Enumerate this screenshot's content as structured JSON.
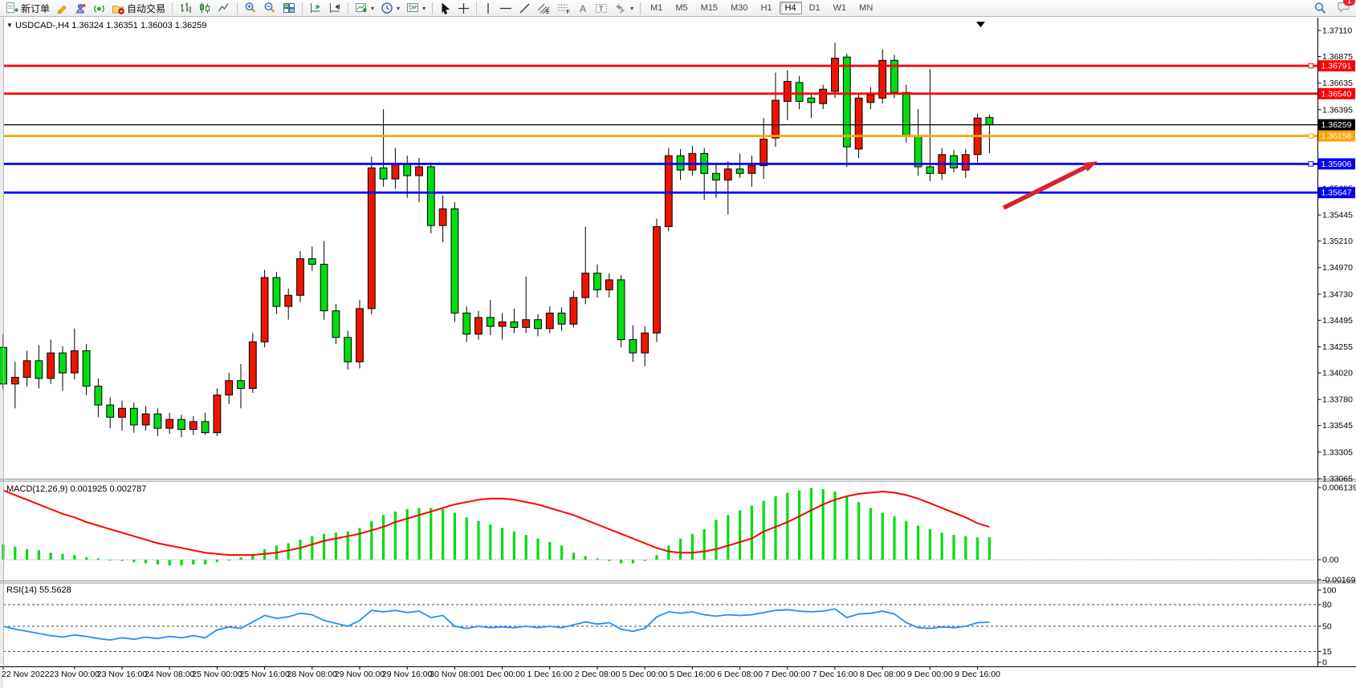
{
  "toolbar": {
    "new_order_label": "新订单",
    "auto_trading_label": "自动交易",
    "timeframes": [
      "M1",
      "M5",
      "M15",
      "M30",
      "H1",
      "H4",
      "D1",
      "W1",
      "MN"
    ],
    "active_timeframe": "H4",
    "notification_count": "1"
  },
  "header": {
    "symbol": "USDCAD-,H4",
    "open": "1.36324",
    "high": "1.36351",
    "low": "1.36003",
    "close": "1.36259"
  },
  "chart_data": {
    "type": "candlestick",
    "symbol": "USDCAD",
    "timeframe": "H4",
    "current_bar": {
      "open": 1.36324,
      "high": 1.36351,
      "low": 1.36003,
      "close": 1.36259
    },
    "colors": {
      "up_candle": "#ee1500",
      "down_candle": "#00dd11",
      "candle_outline": "#000000",
      "macd_hist": "#00dd11",
      "macd_signal": "#ff0000",
      "rsi_line": "#1e90ff",
      "line_red": "#ff0000",
      "line_blue": "#0000ff",
      "line_orange": "#ffa500",
      "current_price": "#000000",
      "arrow": "#d8232e"
    },
    "y_axis": {
      "top_price": 1.3711,
      "bottom_price": 1.33065,
      "tick_labels": [
        "1.37110",
        "1.36875",
        "1.36635",
        "1.36395",
        "1.35685",
        "1.35445",
        "1.35210",
        "1.34970",
        "1.34730",
        "1.34495",
        "1.34255",
        "1.34020",
        "1.33780",
        "1.33545",
        "1.33305",
        "1.33065"
      ],
      "tick_prices": [
        1.3711,
        1.36875,
        1.36635,
        1.36395,
        1.35685,
        1.35445,
        1.3521,
        1.3497,
        1.3473,
        1.34495,
        1.34255,
        1.3402,
        1.3378,
        1.33545,
        1.33305,
        1.33065
      ]
    },
    "x_axis_labels": [
      {
        "text": "22 Nov 2022",
        "bar": 0
      },
      {
        "text": "23 Nov 00:00",
        "bar": 6
      },
      {
        "text": "23 Nov 16:00",
        "bar": 10
      },
      {
        "text": "24 Nov 08:00",
        "bar": 14
      },
      {
        "text": "25 Nov 00:00",
        "bar": 18
      },
      {
        "text": "25 Nov 16:00",
        "bar": 22
      },
      {
        "text": "28 Nov 08:00",
        "bar": 26
      },
      {
        "text": "29 Nov 00:00",
        "bar": 30
      },
      {
        "text": "29 Nov 16:00",
        "bar": 34
      },
      {
        "text": "30 Nov 08:00",
        "bar": 38
      },
      {
        "text": "1 Dec 00:00",
        "bar": 42
      },
      {
        "text": "1 Dec 16:00",
        "bar": 46
      },
      {
        "text": "2 Dec 08:00",
        "bar": 50
      },
      {
        "text": "5 Dec 00:00",
        "bar": 54
      },
      {
        "text": "5 Dec 16:00",
        "bar": 58
      },
      {
        "text": "6 Dec 08:00",
        "bar": 62
      },
      {
        "text": "7 Dec 00:00",
        "bar": 66
      },
      {
        "text": "7 Dec 16:00",
        "bar": 70
      },
      {
        "text": "8 Dec 08:00",
        "bar": 74
      },
      {
        "text": "9 Dec 00:00",
        "bar": 78
      },
      {
        "text": "9 Dec 16:00",
        "bar": 82
      }
    ],
    "candles": [
      [
        1.3425,
        1.3437,
        1.3387,
        1.3392
      ],
      [
        1.3392,
        1.3412,
        1.337,
        1.3398
      ],
      [
        1.3398,
        1.3422,
        1.339,
        1.3413
      ],
      [
        1.3413,
        1.3427,
        1.3388,
        1.3397
      ],
      [
        1.3397,
        1.3432,
        1.3392,
        1.342
      ],
      [
        1.342,
        1.3426,
        1.3386,
        1.3402
      ],
      [
        1.3402,
        1.3442,
        1.3396,
        1.3422
      ],
      [
        1.3422,
        1.3428,
        1.3382,
        1.339
      ],
      [
        1.339,
        1.3397,
        1.3362,
        1.3373
      ],
      [
        1.3373,
        1.338,
        1.3352,
        1.3362
      ],
      [
        1.3362,
        1.3377,
        1.335,
        1.337
      ],
      [
        1.337,
        1.3375,
        1.3348,
        1.3355
      ],
      [
        1.3355,
        1.3372,
        1.335,
        1.3365
      ],
      [
        1.3365,
        1.337,
        1.3345,
        1.3352
      ],
      [
        1.3352,
        1.3366,
        1.3347,
        1.336
      ],
      [
        1.336,
        1.3364,
        1.3344,
        1.3351
      ],
      [
        1.3351,
        1.3363,
        1.3346,
        1.3358
      ],
      [
        1.3358,
        1.3366,
        1.3346,
        1.3348
      ],
      [
        1.3348,
        1.3388,
        1.3345,
        1.3382
      ],
      [
        1.3382,
        1.3402,
        1.3374,
        1.3395
      ],
      [
        1.3395,
        1.341,
        1.337,
        1.3388
      ],
      [
        1.3388,
        1.3438,
        1.3384,
        1.343
      ],
      [
        1.343,
        1.3495,
        1.3425,
        1.3488
      ],
      [
        1.3488,
        1.3493,
        1.3455,
        1.3462
      ],
      [
        1.3462,
        1.3478,
        1.345,
        1.3472
      ],
      [
        1.3472,
        1.3512,
        1.3466,
        1.3505
      ],
      [
        1.3505,
        1.3516,
        1.3494,
        1.35
      ],
      [
        1.35,
        1.3521,
        1.345,
        1.3458
      ],
      [
        1.3458,
        1.3464,
        1.3428,
        1.3434
      ],
      [
        1.3434,
        1.344,
        1.3405,
        1.3412
      ],
      [
        1.3412,
        1.3468,
        1.3406,
        1.346
      ],
      [
        1.346,
        1.3597,
        1.3455,
        1.3587
      ],
      [
        1.3587,
        1.364,
        1.357,
        1.3577
      ],
      [
        1.3577,
        1.3605,
        1.3568,
        1.359
      ],
      [
        1.359,
        1.3598,
        1.356,
        1.358
      ],
      [
        1.358,
        1.3596,
        1.3556,
        1.3588
      ],
      [
        1.3588,
        1.3592,
        1.3528,
        1.3535
      ],
      [
        1.3535,
        1.3562,
        1.352,
        1.355
      ],
      [
        1.355,
        1.3556,
        1.3448,
        1.3456
      ],
      [
        1.3456,
        1.3462,
        1.343,
        1.3437
      ],
      [
        1.3437,
        1.3458,
        1.3432,
        1.3452
      ],
      [
        1.3452,
        1.3468,
        1.3436,
        1.3444
      ],
      [
        1.3444,
        1.3456,
        1.3432,
        1.3448
      ],
      [
        1.3448,
        1.346,
        1.3438,
        1.3443
      ],
      [
        1.3443,
        1.3489,
        1.3438,
        1.345
      ],
      [
        1.345,
        1.3455,
        1.3435,
        1.3442
      ],
      [
        1.3442,
        1.3462,
        1.3438,
        1.3456
      ],
      [
        1.3456,
        1.3461,
        1.344,
        1.3446
      ],
      [
        1.3446,
        1.3476,
        1.3443,
        1.347
      ],
      [
        1.347,
        1.3534,
        1.3464,
        1.3492
      ],
      [
        1.3492,
        1.35,
        1.347,
        1.3477
      ],
      [
        1.3477,
        1.3492,
        1.347,
        1.3486
      ],
      [
        1.3486,
        1.349,
        1.3425,
        1.3432
      ],
      [
        1.3432,
        1.3445,
        1.3412,
        1.342
      ],
      [
        1.342,
        1.3444,
        1.3408,
        1.3438
      ],
      [
        1.3438,
        1.3541,
        1.343,
        1.3534
      ],
      [
        1.3534,
        1.3605,
        1.353,
        1.3598
      ],
      [
        1.3598,
        1.3604,
        1.3576,
        1.3585
      ],
      [
        1.3585,
        1.3607,
        1.358,
        1.36
      ],
      [
        1.36,
        1.3605,
        1.3558,
        1.3582
      ],
      [
        1.3582,
        1.359,
        1.356,
        1.3576
      ],
      [
        1.3576,
        1.3593,
        1.3545,
        1.3586
      ],
      [
        1.3586,
        1.36,
        1.3578,
        1.3582
      ],
      [
        1.3582,
        1.3598,
        1.357,
        1.3589
      ],
      [
        1.3589,
        1.3632,
        1.3577,
        1.3613
      ],
      [
        1.3614,
        1.3673,
        1.3606,
        1.3648
      ],
      [
        1.3647,
        1.3675,
        1.363,
        1.3665
      ],
      [
        1.3664,
        1.367,
        1.364,
        1.3647
      ],
      [
        1.365,
        1.3655,
        1.3632,
        1.3646
      ],
      [
        1.3645,
        1.3662,
        1.364,
        1.3658
      ],
      [
        1.3656,
        1.37,
        1.365,
        1.3686
      ],
      [
        1.3687,
        1.369,
        1.3588,
        1.3606
      ],
      [
        1.3604,
        1.3655,
        1.3596,
        1.365
      ],
      [
        1.3646,
        1.366,
        1.364,
        1.3653
      ],
      [
        1.365,
        1.3694,
        1.3645,
        1.3684
      ],
      [
        1.3684,
        1.3689,
        1.365,
        1.3655
      ],
      [
        1.3655,
        1.3662,
        1.361,
        1.3616
      ],
      [
        1.3616,
        1.364,
        1.358,
        1.3588
      ],
      [
        1.3588,
        1.3676,
        1.3575,
        1.3582
      ],
      [
        1.3582,
        1.3605,
        1.3576,
        1.3599
      ],
      [
        1.3598,
        1.3603,
        1.3583,
        1.3587
      ],
      [
        1.3585,
        1.3604,
        1.3578,
        1.3599
      ],
      [
        1.3599,
        1.3636,
        1.3592,
        1.3632
      ],
      [
        1.36324,
        1.36351,
        1.36003,
        1.36259
      ]
    ],
    "h_lines": [
      {
        "price": 1.36791,
        "label": "1.36791",
        "color": "#ff0000",
        "handle": true
      },
      {
        "price": 1.3654,
        "label": "1.36540",
        "color": "#ff0000",
        "handle": false
      },
      {
        "price": 1.36158,
        "label": "1.36158",
        "color": "#ffa500",
        "handle": true
      },
      {
        "price": 1.35906,
        "label": "1.35906",
        "color": "#0000ff",
        "handle": true
      },
      {
        "price": 1.35647,
        "label": "1.35647",
        "color": "#0000ff",
        "handle": false
      }
    ],
    "current_price_line": {
      "price": 1.36259,
      "label": "1.36259",
      "color": "#000000"
    },
    "arrow": {
      "from": {
        "bar": 84.2,
        "price": 1.3551
      },
      "to": {
        "bar": 92.1,
        "price": 1.3593
      }
    },
    "macd": {
      "label": "MACD(12,26,9)",
      "value": "0.001925",
      "signal_value": "0.002787",
      "axis_max_label": "0.006139",
      "axis_zero_label": "0.00",
      "axis_min_label": "-0.001692",
      "axis_max": 0.006139,
      "axis_min": -0.001692,
      "histogram": [
        0.0013,
        0.0011,
        0.0009,
        0.0008,
        0.0006,
        0.0005,
        0.0004,
        0.0002,
        0.0001,
        0.0,
        -0.0001,
        -0.0002,
        -0.0003,
        -0.0004,
        -0.0005,
        -0.0005,
        -0.0004,
        -0.0004,
        -0.0002,
        0.0,
        0.0002,
        0.0005,
        0.0009,
        0.0012,
        0.0014,
        0.0017,
        0.002,
        0.0022,
        0.0023,
        0.0024,
        0.0027,
        0.0033,
        0.0038,
        0.0041,
        0.0043,
        0.0044,
        0.0044,
        0.0043,
        0.004,
        0.0036,
        0.0033,
        0.003,
        0.0027,
        0.0024,
        0.0021,
        0.0018,
        0.0015,
        0.0012,
        0.0006,
        0.0003,
        0.0001,
        -0.0001,
        -0.0003,
        -0.0003,
        -0.0001,
        0.0004,
        0.0012,
        0.0018,
        0.0022,
        0.0026,
        0.0034,
        0.0038,
        0.0042,
        0.0046,
        0.005,
        0.0054,
        0.0057,
        0.0059,
        0.0061,
        0.006,
        0.0058,
        0.0054,
        0.0049,
        0.0044,
        0.004,
        0.0037,
        0.0033,
        0.0029,
        0.0026,
        0.0023,
        0.0021,
        0.002,
        0.0019,
        0.001925
      ],
      "signal": [
        0.0059,
        0.0055,
        0.0051,
        0.0047,
        0.0043,
        0.0039,
        0.0036,
        0.0032,
        0.0029,
        0.0026,
        0.0023,
        0.002,
        0.0017,
        0.0014,
        0.0012,
        0.001,
        0.0008,
        0.0006,
        0.0005,
        0.0004,
        0.0004,
        0.0004,
        0.0005,
        0.0006,
        0.0008,
        0.001,
        0.0013,
        0.0016,
        0.0018,
        0.002,
        0.0022,
        0.0025,
        0.0028,
        0.0032,
        0.0035,
        0.0038,
        0.0041,
        0.0044,
        0.0047,
        0.0049,
        0.0051,
        0.0052,
        0.0052,
        0.0051,
        0.0049,
        0.0047,
        0.0044,
        0.0041,
        0.0038,
        0.0034,
        0.003,
        0.0026,
        0.0022,
        0.0018,
        0.0014,
        0.001,
        0.0007,
        0.0006,
        0.0006,
        0.0007,
        0.0009,
        0.0012,
        0.0015,
        0.0018,
        0.0024,
        0.0028,
        0.0032,
        0.0037,
        0.0042,
        0.0047,
        0.0051,
        0.0054,
        0.0056,
        0.0057,
        0.0058,
        0.0057,
        0.0055,
        0.0052,
        0.0048,
        0.0044,
        0.004,
        0.0036,
        0.0031,
        0.00279
      ]
    },
    "rsi": {
      "label": "RSI(14)",
      "value": "55.5628",
      "level_labels": [
        "100",
        "80",
        "50",
        "15",
        "0"
      ],
      "levels": [
        100,
        80,
        50,
        15,
        0
      ],
      "dashed_levels": [
        80,
        50,
        15
      ],
      "series": [
        50,
        46,
        43,
        40,
        37,
        35,
        38,
        36,
        33,
        31,
        34,
        32,
        35,
        33,
        36,
        34,
        37,
        34,
        45,
        49,
        47,
        56,
        65,
        61,
        63,
        68,
        66,
        58,
        54,
        50,
        58,
        72,
        70,
        72,
        69,
        71,
        62,
        65,
        50,
        47,
        50,
        48,
        49,
        48,
        50,
        48,
        50,
        48,
        52,
        56,
        53,
        55,
        46,
        43,
        47,
        63,
        70,
        68,
        70,
        66,
        64,
        66,
        65,
        66,
        69,
        72,
        73,
        71,
        70,
        71,
        74,
        62,
        67,
        68,
        71,
        67,
        55,
        48,
        47,
        49,
        48,
        50,
        55,
        55.56
      ]
    }
  }
}
